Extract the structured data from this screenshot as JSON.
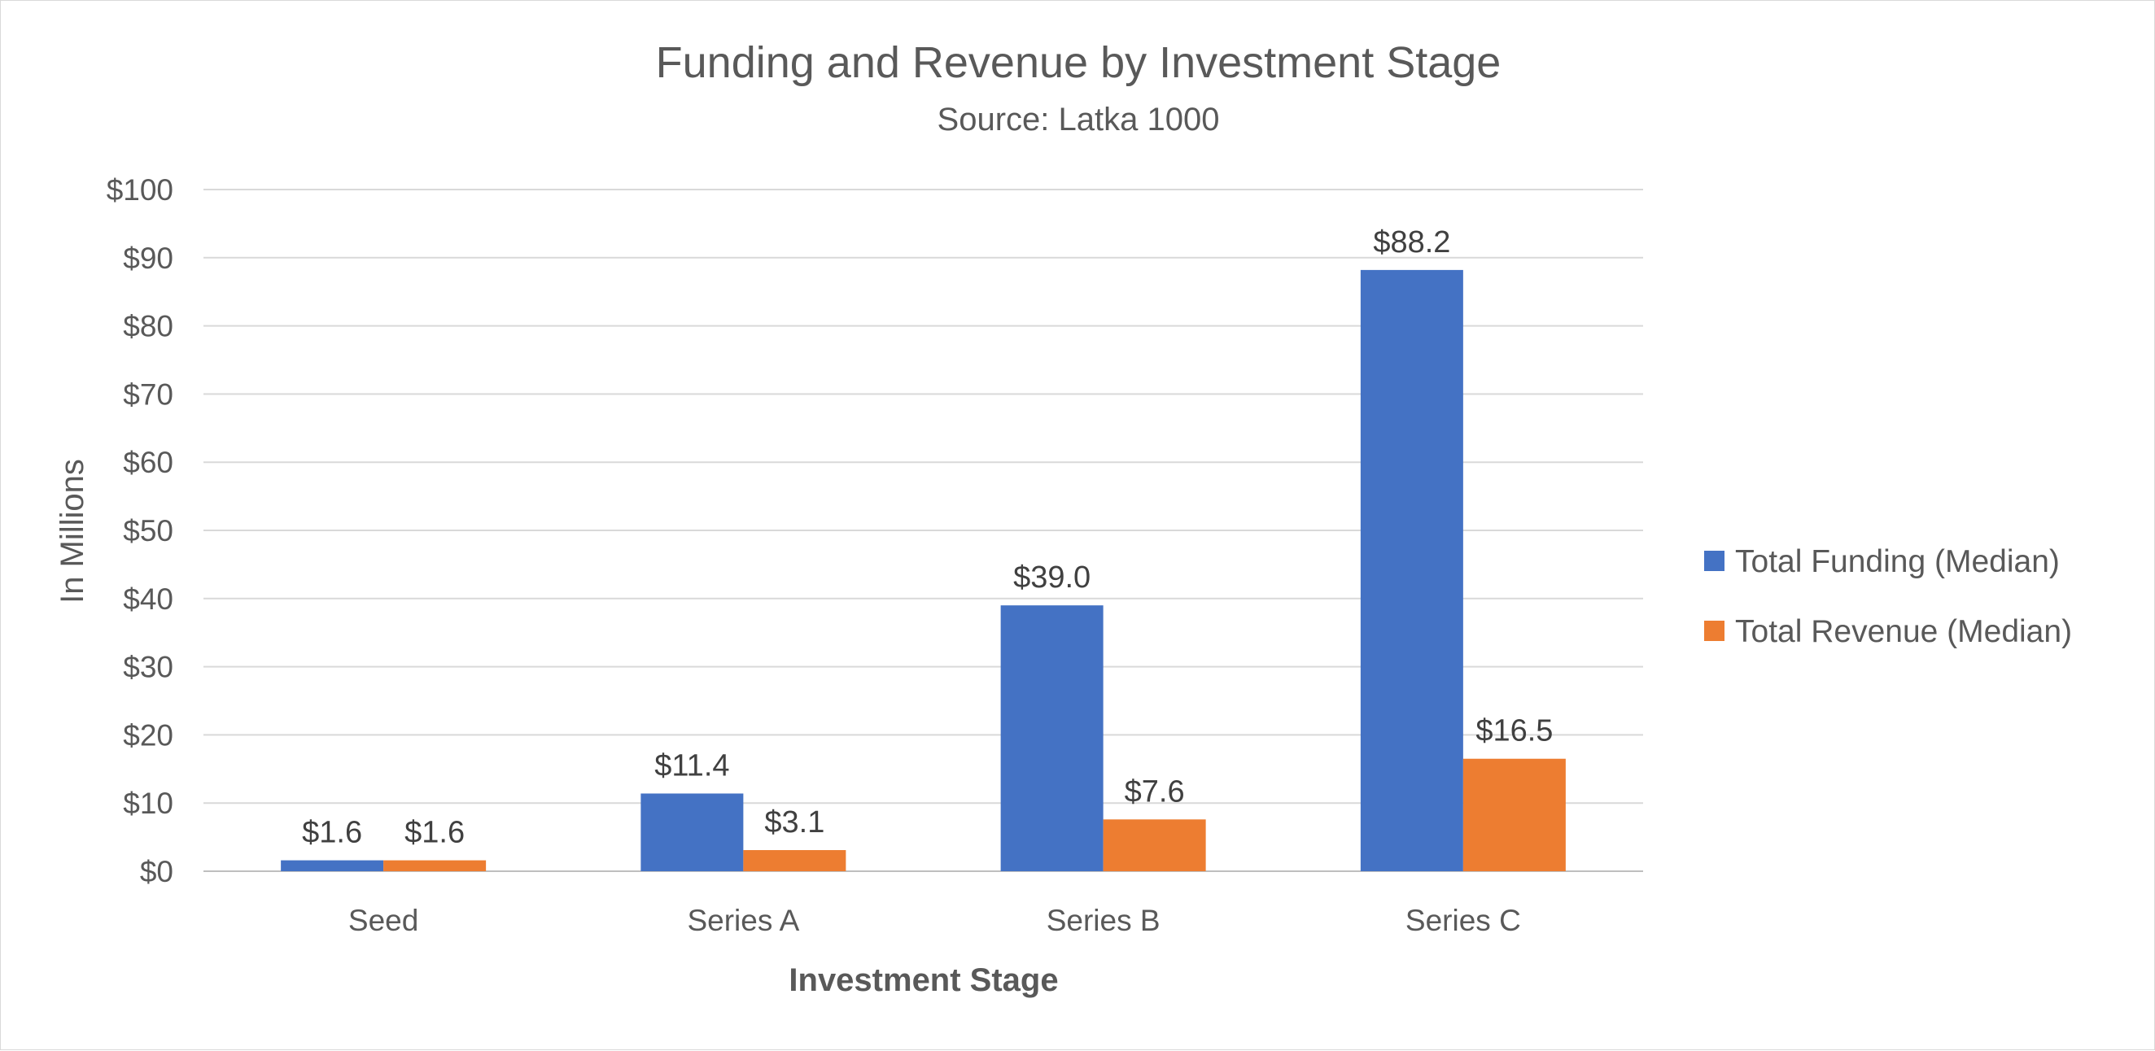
{
  "chart_data": {
    "type": "bar",
    "title": "Funding and Revenue by Investment Stage",
    "subtitle": "Source:  Latka 1000",
    "xlabel": "Investment Stage",
    "ylabel": "In Millions",
    "categories": [
      "Seed",
      "Series A",
      "Series B",
      "Series C"
    ],
    "series": [
      {
        "name": "Total Funding (Median)",
        "color": "#4472c4",
        "values": [
          1.6,
          11.4,
          39.0,
          88.2
        ],
        "labels": [
          "$1.6",
          "$11.4",
          "$39.0",
          "$88.2"
        ]
      },
      {
        "name": "Total Revenue (Median)",
        "color": "#ed7d31",
        "values": [
          1.6,
          3.1,
          7.6,
          16.5
        ],
        "labels": [
          "$1.6",
          "$3.1",
          "$7.6",
          "$16.5"
        ]
      }
    ],
    "ylim": [
      0,
      100
    ],
    "yticks": [
      0,
      10,
      20,
      30,
      40,
      50,
      60,
      70,
      80,
      90,
      100
    ],
    "ytick_labels": [
      "$0",
      "$10",
      "$20",
      "$30",
      "$40",
      "$50",
      "$60",
      "$70",
      "$80",
      "$90",
      "$100"
    ],
    "grid": true,
    "legend_position": "right"
  }
}
